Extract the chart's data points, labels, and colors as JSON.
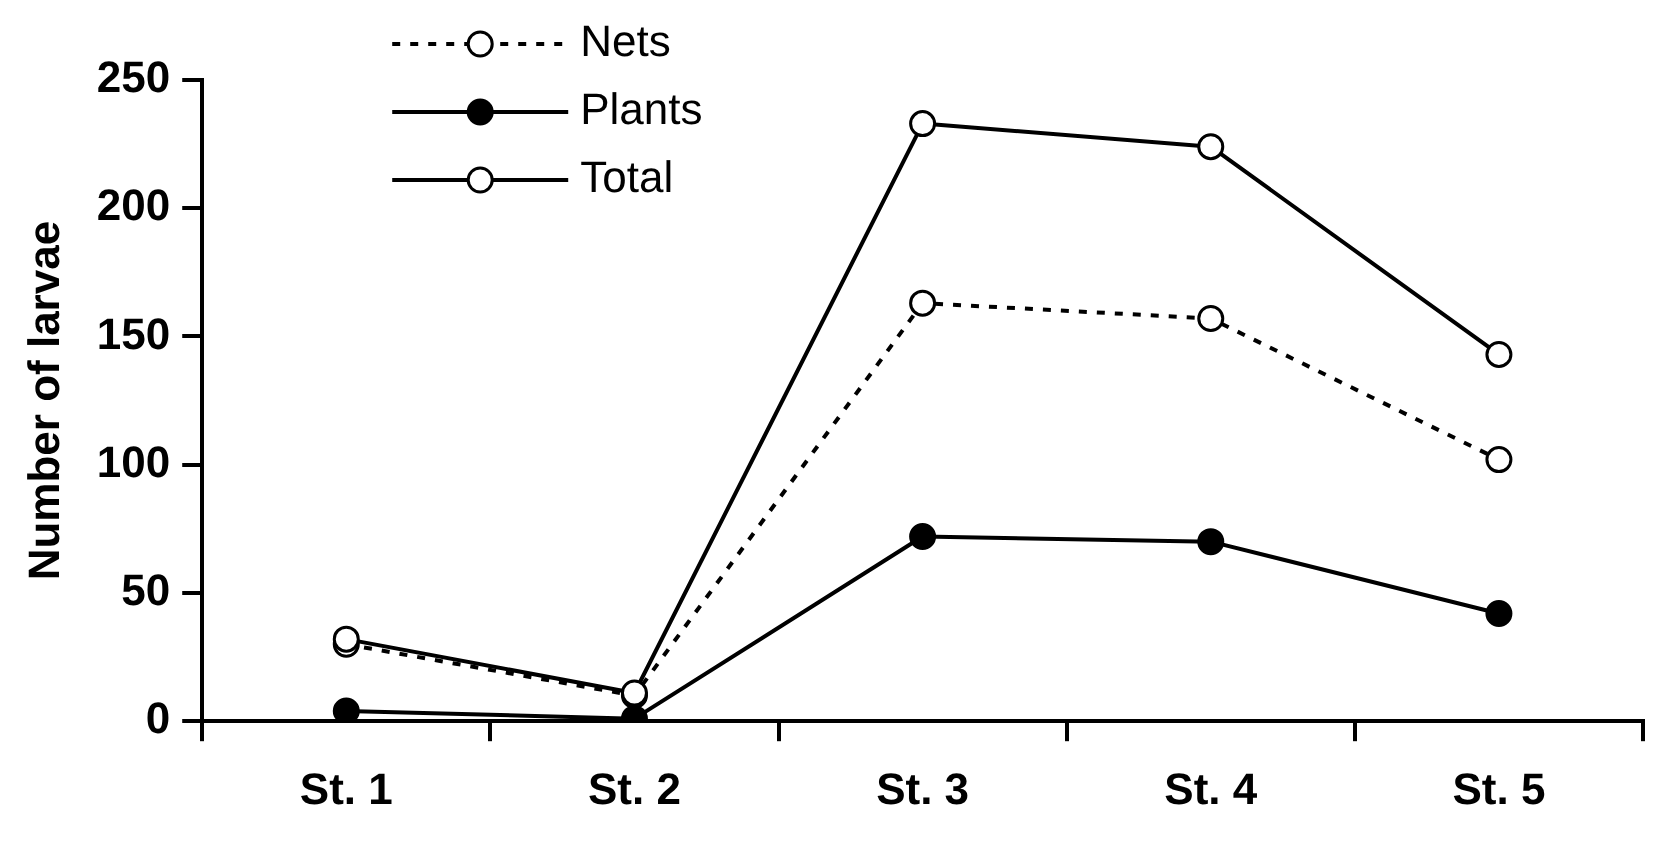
{
  "chart_data": {
    "type": "line",
    "ylabel": "Number of larvae",
    "categories": [
      "St. 1",
      "St. 2",
      "St. 3",
      "St. 4",
      "St. 5"
    ],
    "series": [
      {
        "name": "Nets",
        "color": "#000000",
        "line_style": "dashed",
        "values": [
          30,
          10,
          163,
          157,
          102
        ]
      },
      {
        "name": "Plants",
        "color": "#000000",
        "line_style": "solid",
        "values": [
          4,
          1,
          72,
          70,
          42
        ]
      },
      {
        "name": "Total",
        "color": "#000000",
        "line_style": "solid",
        "values": [
          32,
          11,
          233,
          224,
          143
        ]
      }
    ],
    "ylim": [
      0,
      250
    ],
    "yticks": [
      0,
      50,
      100,
      150,
      200,
      250
    ],
    "grid": false,
    "legend": "top left",
    "marker": "circle"
  }
}
